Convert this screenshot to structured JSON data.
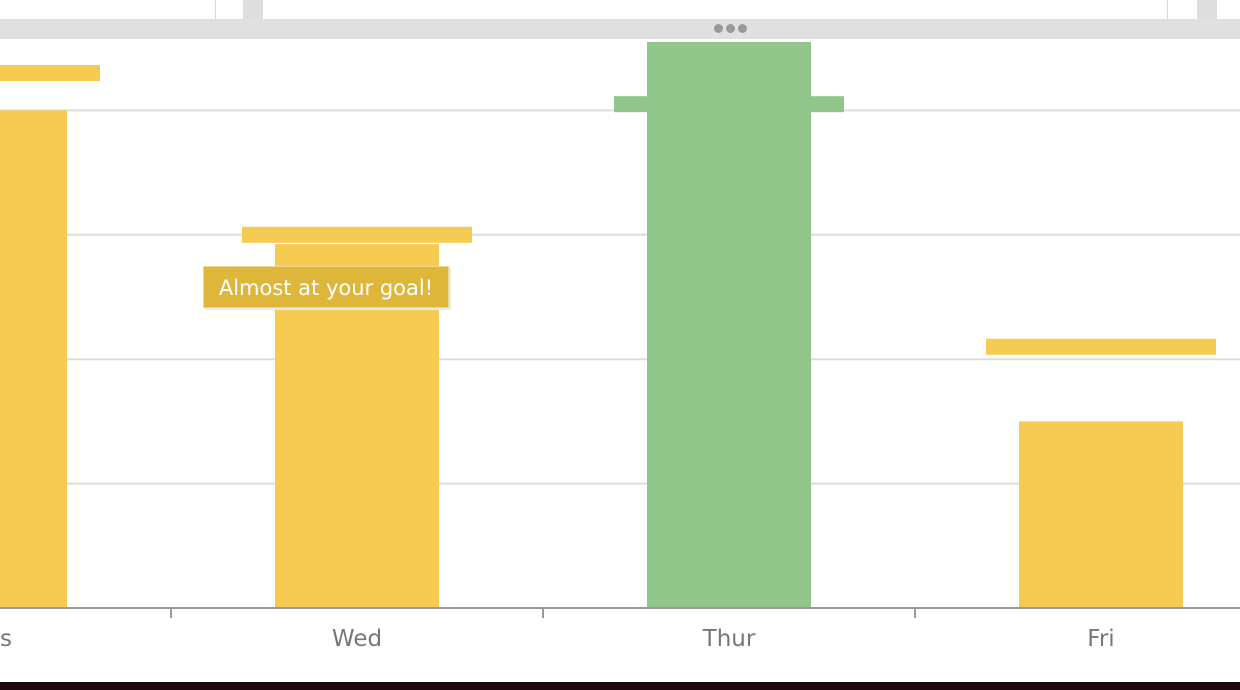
{
  "window": {
    "resize_handle_icon": "drag-dots-icon"
  },
  "colors": {
    "under_goal": "#f6cb52",
    "goal_met": "#90c68a",
    "tooltip_bg": "#ddb63a",
    "grid": "#dddddd",
    "axis": "#999999",
    "tick_label": "#777777"
  },
  "tooltip": {
    "text": "Almost at your goal!"
  },
  "chart_data": {
    "type": "bar",
    "categories": [
      "Tue",
      "Wed",
      "Thur",
      "Fri"
    ],
    "visible_tick_labels": [
      "s",
      "Wed",
      "Thur",
      "Fri"
    ],
    "series": [
      {
        "values": [
          80.0,
          58.5,
          91.0,
          30.0
        ]
      }
    ],
    "goals": [
      86.0,
      60.0,
      81.0,
      42.0
    ],
    "goal_met": [
      false,
      false,
      true,
      false
    ],
    "ylim": [
      0,
      91
    ],
    "grid": true,
    "xlabel": "",
    "ylabel": "",
    "title": ""
  }
}
